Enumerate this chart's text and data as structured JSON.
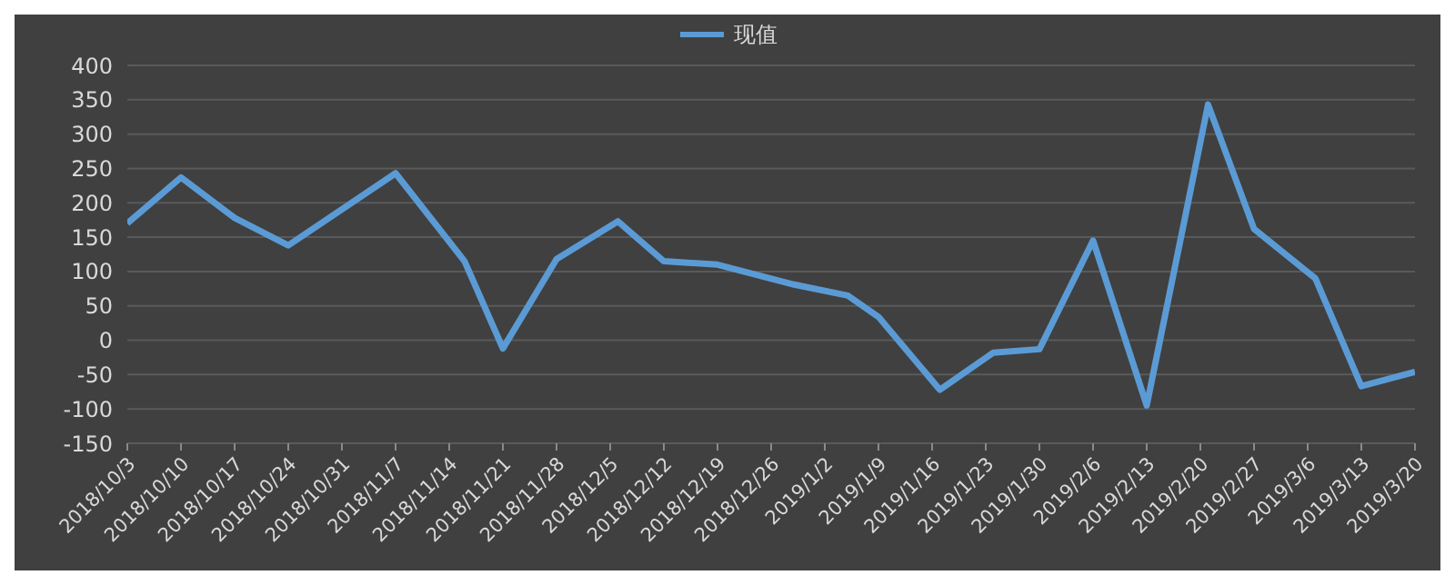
{
  "chart_data": {
    "type": "line",
    "legend": "top",
    "x": [
      "2018-10-03",
      "2018-10-10",
      "2018-10-17",
      "2018-10-24",
      "2018-11-07",
      "2018-11-16",
      "2018-11-21",
      "2018-11-28",
      "2018-12-06",
      "2018-12-12",
      "2018-12-19",
      "2018-12-29",
      "2019-01-05",
      "2019-01-09",
      "2019-01-17",
      "2019-01-24",
      "2019-01-30",
      "2019-02-06",
      "2019-02-13",
      "2019-02-21",
      "2019-02-27",
      "2019-03-07",
      "2019-03-13",
      "2019-03-20"
    ],
    "series": [
      {
        "name": "现值",
        "color": "#5b9bd5",
        "values": [
          170,
          237,
          178,
          138,
          243,
          115,
          -12,
          118,
          173,
          115,
          110,
          81,
          65,
          34,
          -72,
          -18,
          -13,
          145,
          -95,
          343,
          162,
          90,
          -67,
          -46
        ]
      }
    ],
    "xlim": [
      "2018-10-03",
      "2019-03-20"
    ],
    "xticks": [
      {
        "value": "2018-10-03",
        "label": "2018/10/3"
      },
      {
        "value": "2018-10-10",
        "label": "2018/10/10"
      },
      {
        "value": "2018-10-17",
        "label": "2018/10/17"
      },
      {
        "value": "2018-10-24",
        "label": "2018/10/24"
      },
      {
        "value": "2018-10-31",
        "label": "2018/10/31"
      },
      {
        "value": "2018-11-07",
        "label": "2018/11/7"
      },
      {
        "value": "2018-11-14",
        "label": "2018/11/14"
      },
      {
        "value": "2018-11-21",
        "label": "2018/11/21"
      },
      {
        "value": "2018-11-28",
        "label": "2018/11/28"
      },
      {
        "value": "2018-12-05",
        "label": "2018/12/5"
      },
      {
        "value": "2018-12-12",
        "label": "2018/12/12"
      },
      {
        "value": "2018-12-19",
        "label": "2018/12/19"
      },
      {
        "value": "2018-12-26",
        "label": "2018/12/26"
      },
      {
        "value": "2019-01-02",
        "label": "2019/1/2"
      },
      {
        "value": "2019-01-09",
        "label": "2019/1/9"
      },
      {
        "value": "2019-01-16",
        "label": "2019/1/16"
      },
      {
        "value": "2019-01-23",
        "label": "2019/1/23"
      },
      {
        "value": "2019-01-30",
        "label": "2019/1/30"
      },
      {
        "value": "2019-02-06",
        "label": "2019/2/6"
      },
      {
        "value": "2019-02-13",
        "label": "2019/2/13"
      },
      {
        "value": "2019-02-20",
        "label": "2019/2/20"
      },
      {
        "value": "2019-02-27",
        "label": "2019/2/27"
      },
      {
        "value": "2019-03-06",
        "label": "2019/3/6"
      },
      {
        "value": "2019-03-13",
        "label": "2019/3/13"
      },
      {
        "value": "2019-03-20",
        "label": "2019/3/20"
      }
    ],
    "ylim": [
      -150,
      400
    ],
    "yticks": [
      -150,
      -100,
      -50,
      0,
      50,
      100,
      150,
      200,
      250,
      300,
      350,
      400
    ],
    "grid": "y",
    "marker": "none",
    "line_style": "solid"
  }
}
